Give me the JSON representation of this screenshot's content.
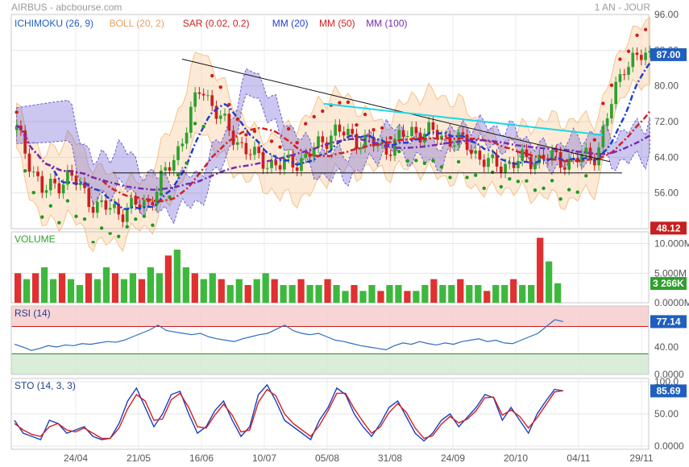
{
  "header": {
    "instrument": "AIRBUS - abcbourse.com",
    "timeframe": "1 AN - JOUR"
  },
  "colors": {
    "candle_up": "#2fa02f",
    "candle_down": "#cc1f1f",
    "ichimoku_cloud": "#6a5ed4",
    "bollinger": "#f5c28a",
    "sar": "#cc1f1f",
    "sar_bull": "#1f9a1f",
    "mm20": "#1f3fcf",
    "mm50": "#d42020",
    "mm100": "#7a2bb0",
    "trend_cyan": "#1ed6e6",
    "volume_up": "#3db83d",
    "volume_down": "#e03030",
    "rsi_line": "#2a6fc0",
    "sto_k": "#1a3fbf",
    "sto_d": "#d42020",
    "badge_blue": "#1f5fbf",
    "badge_red": "#c81f1f",
    "badge_green": "#2ea02e"
  },
  "chart_data": [
    {
      "type": "candlestick",
      "panel": "price",
      "indicators": [
        {
          "label": "ICHIMOKU (26, 9)",
          "color": "#1f5fbf"
        },
        {
          "label": "BOLL (20, 2)",
          "color": "#e8a060"
        },
        {
          "label": "SAR (0.02, 0.2)",
          "color": "#cc1f1f"
        },
        {
          "label": "MM (20)",
          "color": "#1f3fcf"
        },
        {
          "label": "MM (50)",
          "color": "#d42020"
        },
        {
          "label": "MM (100)",
          "color": "#7a2bb0"
        }
      ],
      "x_ticks": [
        "24/04",
        "21/05",
        "16/06",
        "10/07",
        "05/08",
        "31/08",
        "24/09",
        "20/10",
        "04/11",
        "29/11"
      ],
      "y_ticks": [
        "96.00",
        "88.00",
        "80.00",
        "72.00",
        "64.00",
        "56.00",
        "48.00"
      ],
      "ylim": [
        48,
        96
      ],
      "badges": [
        {
          "value": "87.00",
          "y": 87.0,
          "style": "blue"
        },
        {
          "value": "48.12",
          "y": 48.12,
          "style": "red"
        }
      ],
      "close_approx": {
        "x": [
          0,
          10,
          20,
          30,
          40,
          50,
          60,
          70,
          80,
          90,
          100,
          110,
          120,
          130,
          140,
          150,
          160,
          170,
          180,
          190,
          200,
          210,
          220,
          230,
          240
        ],
        "close": [
          70,
          56,
          60,
          53,
          52,
          54,
          64,
          80,
          70,
          64,
          62,
          64,
          70,
          68,
          66,
          70,
          69,
          67,
          62,
          63,
          64,
          63,
          65,
          85,
          87
        ]
      }
    },
    {
      "type": "bar",
      "panel": "volume",
      "title": "VOLUME",
      "y_ticks": [
        "10.000M",
        "5.000M",
        "0.0000M"
      ],
      "ylim": [
        0,
        12
      ],
      "last_value": "3 266K",
      "values_approx": [
        5,
        4,
        5,
        6,
        4,
        5,
        4,
        3,
        5,
        4,
        6,
        5,
        4,
        5,
        4,
        6,
        5,
        8,
        9,
        6,
        5,
        4,
        5,
        4,
        3,
        4,
        3,
        4,
        5,
        4,
        3,
        3,
        4,
        3,
        3,
        4,
        3,
        2,
        3,
        2,
        3,
        2,
        3,
        3,
        2,
        2,
        3,
        4,
        3,
        3,
        4,
        3,
        3,
        2,
        3,
        3,
        4,
        3,
        3,
        11,
        7,
        3.3
      ]
    },
    {
      "type": "line",
      "panel": "rsi",
      "title": "RSI (14)",
      "y_ticks": [
        "40.00",
        "0.0000"
      ],
      "ylim": [
        0,
        100
      ],
      "overbought": 70,
      "oversold": 30,
      "last_value": "77.14",
      "values": [
        44,
        40,
        35,
        38,
        42,
        40,
        43,
        42,
        45,
        44,
        46,
        48,
        47,
        50,
        55,
        60,
        65,
        72,
        64,
        62,
        60,
        58,
        60,
        55,
        52,
        50,
        48,
        52,
        55,
        58,
        60,
        66,
        72,
        64,
        60,
        58,
        60,
        55,
        50,
        48,
        45,
        42,
        40,
        38,
        36,
        42,
        46,
        44,
        48,
        45,
        43,
        46,
        44,
        48,
        50,
        52,
        48,
        50,
        46,
        45,
        50,
        55,
        60,
        70,
        80,
        77.14
      ]
    },
    {
      "type": "line",
      "panel": "stochastic",
      "title": "STO (14, 3, 3)",
      "y_ticks": [
        "100.0",
        "50.00",
        "0.0000"
      ],
      "ylim": [
        0,
        100
      ],
      "last_value": "85.69",
      "series": [
        {
          "name": "%K",
          "values": [
            40,
            20,
            15,
            10,
            40,
            35,
            20,
            25,
            30,
            15,
            10,
            12,
            35,
            70,
            90,
            60,
            30,
            50,
            80,
            85,
            50,
            20,
            30,
            55,
            70,
            40,
            15,
            30,
            80,
            95,
            70,
            40,
            30,
            20,
            10,
            40,
            60,
            90,
            80,
            50,
            30,
            15,
            35,
            60,
            70,
            45,
            20,
            8,
            20,
            40,
            50,
            30,
            45,
            60,
            80,
            75,
            40,
            60,
            40,
            20,
            50,
            70,
            88,
            85.69
          ]
        },
        {
          "name": "%D",
          "values": [
            35,
            25,
            18,
            15,
            30,
            35,
            25,
            22,
            28,
            20,
            12,
            12,
            28,
            58,
            80,
            70,
            40,
            42,
            72,
            82,
            60,
            30,
            28,
            48,
            65,
            48,
            22,
            25,
            68,
            88,
            78,
            50,
            35,
            25,
            15,
            32,
            55,
            82,
            82,
            58,
            38,
            20,
            30,
            52,
            66,
            52,
            28,
            12,
            16,
            34,
            46,
            36,
            42,
            55,
            75,
            76,
            48,
            56,
            46,
            28,
            44,
            64,
            84,
            86
          ]
        }
      ]
    }
  ]
}
